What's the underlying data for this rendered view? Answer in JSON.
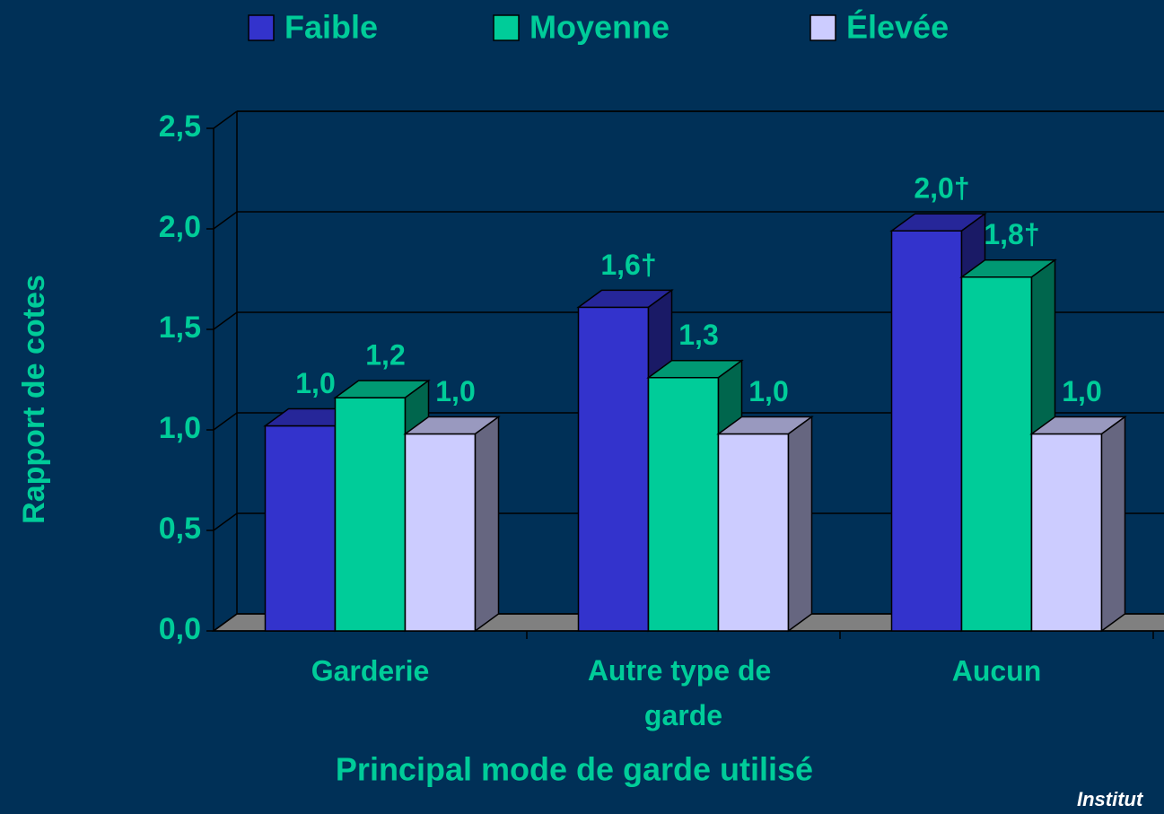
{
  "chart_data": {
    "type": "bar3d",
    "categories": [
      "Garderie",
      "Autre type de garde",
      "Aucun"
    ],
    "series": [
      {
        "name": "Faible",
        "color": "#3333cc",
        "values": [
          1.02,
          1.61,
          1.99
        ],
        "value_labels": [
          "1,0",
          "1,6†",
          "2,0†"
        ]
      },
      {
        "name": "Moyenne",
        "color": "#00cc99",
        "values": [
          1.16,
          1.26,
          1.76
        ],
        "value_labels": [
          "1,2",
          "1,3",
          "1,8†"
        ]
      },
      {
        "name": "Élevée",
        "color": "#ccccff",
        "values": [
          0.98,
          0.98,
          0.98
        ],
        "value_labels": [
          "1,0",
          "1,0",
          "1,0"
        ]
      }
    ],
    "ylim": [
      0,
      2.5
    ],
    "yticks": [
      {
        "value": 0,
        "label": "0,0"
      },
      {
        "value": 0.5,
        "label": "0,5"
      },
      {
        "value": 1,
        "label": "1,0"
      },
      {
        "value": 1.5,
        "label": "1,5"
      },
      {
        "value": 2,
        "label": "2,0"
      },
      {
        "value": 2.5,
        "label": "2,5"
      }
    ],
    "y_axis_label": "Rapport de cotes",
    "x_axis_label": "Principal mode de garde utilisé",
    "source": "Institut",
    "grid": true,
    "legend": "top"
  }
}
